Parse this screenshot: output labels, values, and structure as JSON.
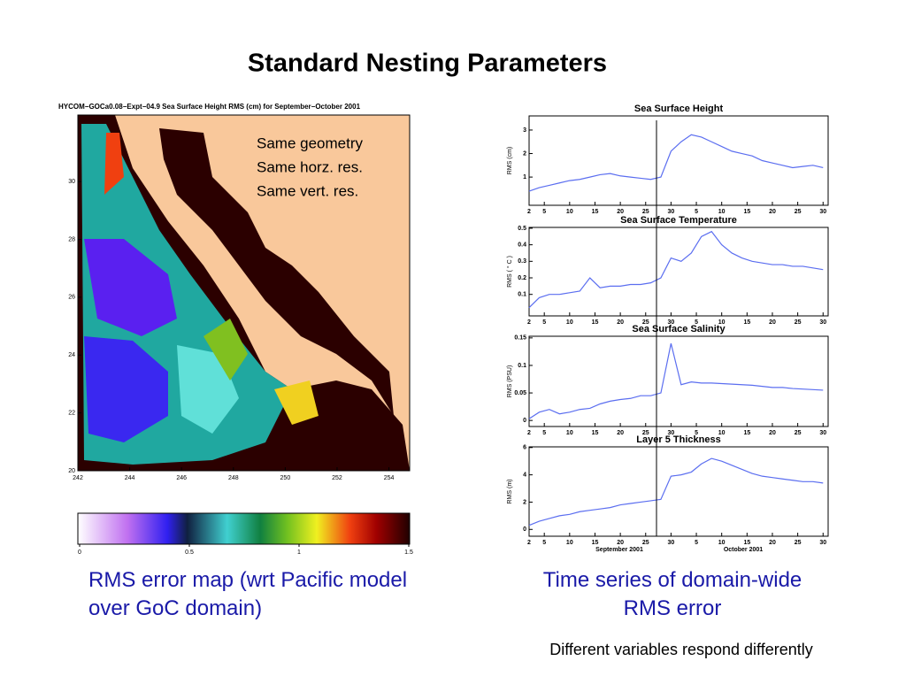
{
  "title": "Standard Nesting Parameters",
  "notes": [
    "Same geometry",
    "Same horz. res.",
    "Same vert. res."
  ],
  "map": {
    "title": "HYCOM−GOCa0.08−Expt−04.9   Sea Surface Height  RMS (cm)  for  September−October 2001",
    "xlim": [
      242,
      254.8
    ],
    "xticks": [
      242,
      244,
      246,
      248,
      250,
      252,
      254
    ],
    "ylim": [
      20,
      32.3
    ],
    "yticks": [
      20,
      22,
      24,
      26,
      28,
      30
    ],
    "colorbar_lim": [
      0,
      1.5
    ],
    "colorbar_ticks": [
      0,
      0.5,
      1,
      1.5
    ]
  },
  "map_caption": "RMS error map (wrt Pacific model over GoC domain)",
  "series_caption": "Time series of domain-wide RMS error",
  "footnote": "Different variables respond differently",
  "chart_data": [
    {
      "type": "line",
      "title": "Sea  Surface  Height",
      "ylabel": "RMS (cm)",
      "color": "#5b6ef0",
      "x": [
        1,
        3,
        5,
        7,
        9,
        11,
        13,
        15,
        17,
        19,
        21,
        23,
        25,
        27,
        29,
        31,
        33,
        35,
        37,
        39,
        41,
        43,
        45,
        47,
        49,
        51,
        53,
        55,
        57,
        59
      ],
      "values": [
        0.4,
        0.55,
        0.65,
        0.75,
        0.85,
        0.9,
        1.0,
        1.1,
        1.15,
        1.05,
        1.0,
        0.95,
        0.9,
        1.0,
        2.1,
        2.5,
        2.8,
        2.7,
        2.5,
        2.3,
        2.1,
        2.0,
        1.9,
        1.7,
        1.6,
        1.5,
        1.4,
        1.45,
        1.5,
        1.4
      ],
      "xlim": [
        1,
        60
      ],
      "xticks": [
        {
          "value": 1,
          "label": "2"
        },
        {
          "value": 4,
          "label": "5"
        },
        {
          "value": 9,
          "label": "10"
        },
        {
          "value": 14,
          "label": "15"
        },
        {
          "value": 19,
          "label": "20"
        },
        {
          "value": 24,
          "label": "25"
        },
        {
          "value": 29,
          "label": "30"
        },
        {
          "value": 34,
          "label": "5"
        },
        {
          "value": 39,
          "label": "10"
        },
        {
          "value": 44,
          "label": "15"
        },
        {
          "value": 49,
          "label": "20"
        },
        {
          "value": 54,
          "label": "25"
        },
        {
          "value": 59,
          "label": "30"
        }
      ],
      "ylim": [
        -0.2,
        3.6
      ],
      "yticks": [
        1,
        2,
        3
      ]
    },
    {
      "type": "line",
      "title": "Sea  Surface  Temperature",
      "ylabel": "RMS ( ° C )",
      "color": "#5b6ef0",
      "x": [
        1,
        3,
        5,
        7,
        9,
        11,
        13,
        15,
        17,
        19,
        21,
        23,
        25,
        27,
        29,
        31,
        33,
        35,
        37,
        39,
        41,
        43,
        45,
        47,
        49,
        51,
        53,
        55,
        57,
        59
      ],
      "values": [
        0.02,
        0.08,
        0.1,
        0.1,
        0.11,
        0.12,
        0.2,
        0.14,
        0.15,
        0.15,
        0.16,
        0.16,
        0.17,
        0.2,
        0.32,
        0.3,
        0.35,
        0.45,
        0.48,
        0.4,
        0.35,
        0.32,
        0.3,
        0.29,
        0.28,
        0.28,
        0.27,
        0.27,
        0.26,
        0.25
      ],
      "xlim": [
        1,
        60
      ],
      "xticks": [
        {
          "value": 1,
          "label": "2"
        },
        {
          "value": 4,
          "label": "5"
        },
        {
          "value": 9,
          "label": "10"
        },
        {
          "value": 14,
          "label": "15"
        },
        {
          "value": 19,
          "label": "20"
        },
        {
          "value": 24,
          "label": "25"
        },
        {
          "value": 29,
          "label": "30"
        },
        {
          "value": 34,
          "label": "5"
        },
        {
          "value": 39,
          "label": "10"
        },
        {
          "value": 44,
          "label": "15"
        },
        {
          "value": 49,
          "label": "20"
        },
        {
          "value": 54,
          "label": "25"
        },
        {
          "value": 59,
          "label": "30"
        }
      ],
      "ylim": [
        -0.03,
        0.505
      ],
      "yticks": [
        0.1,
        0.2,
        0.3,
        0.4,
        0.5
      ]
    },
    {
      "type": "line",
      "title": "Sea  Surface  Salinity",
      "ylabel": "RMS (PSU)",
      "color": "#5b6ef0",
      "x": [
        1,
        3,
        5,
        7,
        9,
        11,
        13,
        15,
        17,
        19,
        21,
        23,
        25,
        27,
        29,
        31,
        33,
        35,
        37,
        39,
        41,
        43,
        45,
        47,
        49,
        51,
        53,
        55,
        57,
        59
      ],
      "values": [
        0.003,
        0.015,
        0.02,
        0.012,
        0.015,
        0.02,
        0.022,
        0.03,
        0.035,
        0.038,
        0.04,
        0.045,
        0.045,
        0.05,
        0.14,
        0.065,
        0.07,
        0.068,
        0.068,
        0.067,
        0.066,
        0.065,
        0.064,
        0.062,
        0.06,
        0.06,
        0.058,
        0.057,
        0.056,
        0.055
      ],
      "xlim": [
        1,
        60
      ],
      "xticks": [
        {
          "value": 1,
          "label": "2"
        },
        {
          "value": 4,
          "label": "5"
        },
        {
          "value": 9,
          "label": "10"
        },
        {
          "value": 14,
          "label": "15"
        },
        {
          "value": 19,
          "label": "20"
        },
        {
          "value": 24,
          "label": "25"
        },
        {
          "value": 29,
          "label": "30"
        },
        {
          "value": 34,
          "label": "5"
        },
        {
          "value": 39,
          "label": "10"
        },
        {
          "value": 44,
          "label": "15"
        },
        {
          "value": 49,
          "label": "20"
        },
        {
          "value": 54,
          "label": "25"
        },
        {
          "value": 59,
          "label": "30"
        }
      ],
      "ylim": [
        -0.011,
        0.153
      ],
      "yticks": [
        0,
        0.05,
        0.1,
        0.15
      ]
    },
    {
      "type": "line",
      "title": "Layer  5  Thickness",
      "ylabel": "RMS (m)",
      "color": "#5b6ef0",
      "x": [
        1,
        3,
        5,
        7,
        9,
        11,
        13,
        15,
        17,
        19,
        21,
        23,
        25,
        27,
        29,
        31,
        33,
        35,
        37,
        39,
        41,
        43,
        45,
        47,
        49,
        51,
        53,
        55,
        57,
        59
      ],
      "values": [
        0.3,
        0.6,
        0.8,
        1.0,
        1.1,
        1.3,
        1.4,
        1.5,
        1.6,
        1.8,
        1.9,
        2.0,
        2.1,
        2.2,
        3.9,
        4.0,
        4.2,
        4.8,
        5.2,
        5.0,
        4.7,
        4.4,
        4.1,
        3.9,
        3.8,
        3.7,
        3.6,
        3.5,
        3.5,
        3.4
      ],
      "xlim": [
        1,
        60
      ],
      "xticks": [
        {
          "value": 1,
          "label": "2"
        },
        {
          "value": 4,
          "label": "5"
        },
        {
          "value": 9,
          "label": "10"
        },
        {
          "value": 14,
          "label": "15"
        },
        {
          "value": 19,
          "label": "20"
        },
        {
          "value": 24,
          "label": "25"
        },
        {
          "value": 29,
          "label": "30"
        },
        {
          "value": 34,
          "label": "5"
        },
        {
          "value": 39,
          "label": "10"
        },
        {
          "value": 44,
          "label": "15"
        },
        {
          "value": 49,
          "label": "20"
        },
        {
          "value": 54,
          "label": "25"
        },
        {
          "value": 59,
          "label": "30"
        }
      ],
      "ylim": [
        -0.5,
        6.05
      ],
      "yticks": [
        0,
        2,
        4,
        6
      ],
      "x_period_labels": [
        "September 2001",
        "October 2001"
      ]
    }
  ]
}
